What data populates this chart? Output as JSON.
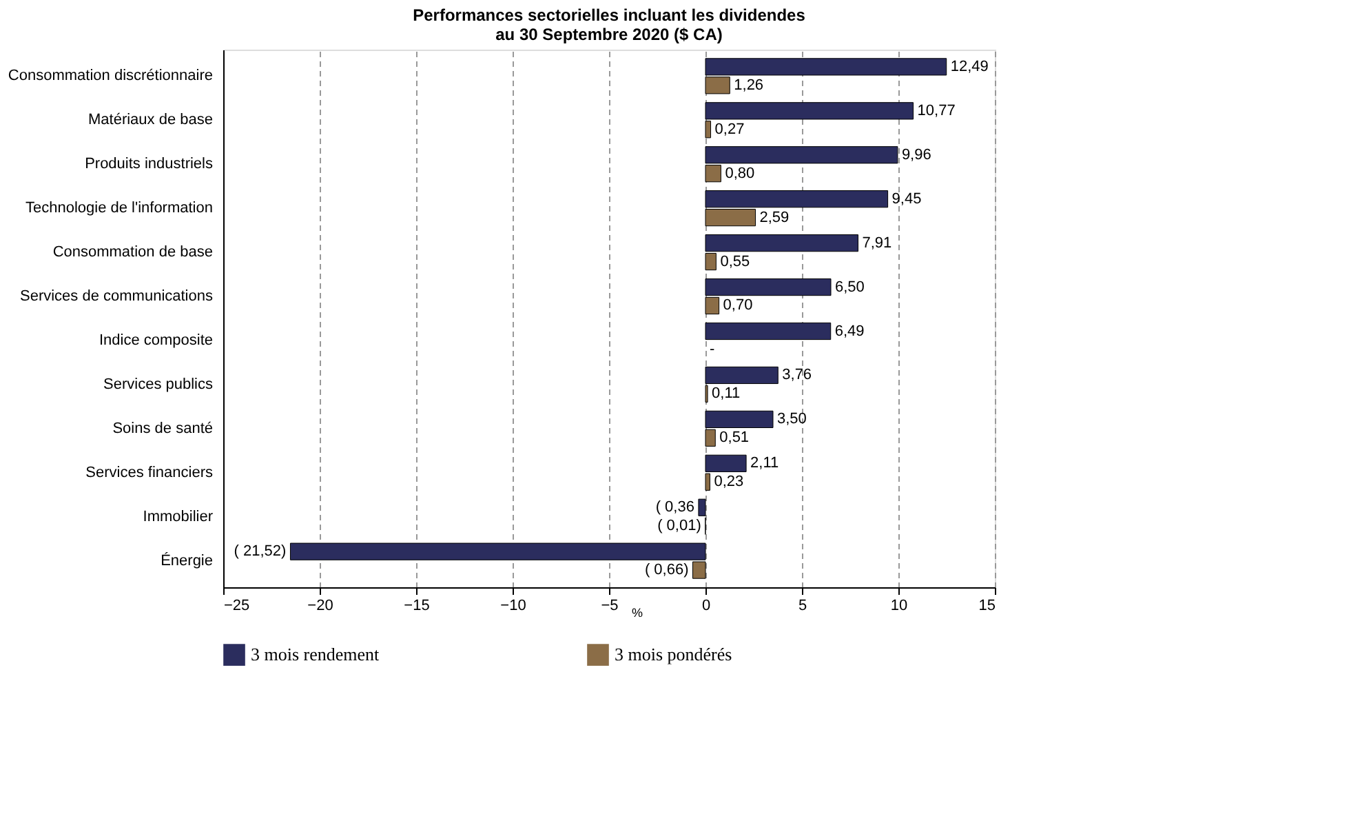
{
  "chart_data": {
    "type": "bar",
    "orientation": "horizontal",
    "title": [
      "Performances sectorielles incluant les dividendes",
      "au 30 Septembre 2020 ($ CA)"
    ],
    "xlabel": "%",
    "categories": [
      "Consommation discrétionnaire",
      "Matériaux de base",
      "Produits industriels",
      "Technologie de l'information",
      "Consommation de base",
      "Services de communications",
      "Indice composite",
      "Services publics",
      "Soins de santé",
      "Services financiers",
      "Immobilier",
      "Énergie"
    ],
    "series": [
      {
        "name": "3 mois rendement",
        "color": "#2b2d5e",
        "values": [
          12.49,
          10.77,
          9.96,
          9.45,
          7.91,
          6.5,
          6.49,
          3.76,
          3.5,
          2.11,
          -0.36,
          -21.52
        ],
        "value_labels": [
          "12,49",
          "10,77",
          "9,96",
          "9,45",
          "7,91",
          "6,50",
          "6,49",
          "3,76",
          "3,50",
          "2,11",
          "( 0,36",
          "( 21,52)"
        ]
      },
      {
        "name": "3 mois pondérés",
        "color": "#8b6d47",
        "values": [
          1.26,
          0.27,
          0.8,
          2.59,
          0.55,
          0.7,
          null,
          0.11,
          0.51,
          0.23,
          -0.01,
          -0.66
        ],
        "value_labels": [
          "1,26",
          "0,27",
          "0,80",
          "2,59",
          "0,55",
          "0,70",
          "-",
          "0,11",
          "0,51",
          "0,23",
          "( 0,01)",
          "( 0,66)"
        ]
      }
    ],
    "xlim": [
      -25,
      15
    ],
    "xticks": [
      -25,
      -20,
      -15,
      -10,
      -5,
      0,
      5,
      10,
      15
    ],
    "grid": "x",
    "legend": "bottom"
  }
}
